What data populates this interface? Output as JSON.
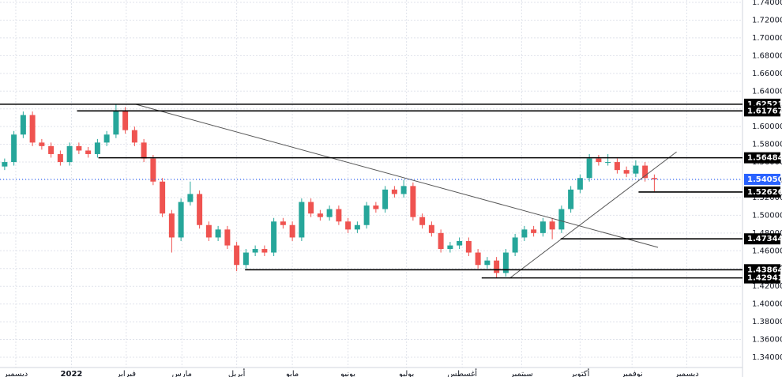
{
  "chart_data": {
    "type": "candlestick",
    "ylim": [
      1.3284,
      1.7427
    ],
    "yticks": [
      {
        "value": 1.34,
        "label": "1.34000"
      },
      {
        "value": 1.36,
        "label": "1.36000"
      },
      {
        "value": 1.38,
        "label": "1.38000"
      },
      {
        "value": 1.4,
        "label": "1.40000"
      },
      {
        "value": 1.42,
        "label": "1.42000"
      },
      {
        "value": 1.44,
        "label": "1.44000"
      },
      {
        "value": 1.46,
        "label": "1.46000"
      },
      {
        "value": 1.48,
        "label": "1.48000"
      },
      {
        "value": 1.5,
        "label": "1.50000"
      },
      {
        "value": 1.52,
        "label": "1.52000"
      },
      {
        "value": 1.54,
        "label": "1.54000"
      },
      {
        "value": 1.56,
        "label": "1.56000"
      },
      {
        "value": 1.58,
        "label": "1.58000"
      },
      {
        "value": 1.6,
        "label": "1.60000"
      },
      {
        "value": 1.62,
        "label": "1.62000"
      },
      {
        "value": 1.64,
        "label": "1.64000"
      },
      {
        "value": 1.66,
        "label": "1.66000"
      },
      {
        "value": 1.68,
        "label": "1.68000"
      },
      {
        "value": 1.7,
        "label": "1.70000"
      },
      {
        "value": 1.72,
        "label": "1.72000"
      },
      {
        "value": 1.74,
        "label": "1.74000"
      }
    ],
    "xlim": [
      -0.5,
      79.5
    ],
    "xticks": [
      {
        "value": 1.2,
        "label": "ديسمبر"
      },
      {
        "value": 7.2,
        "label": "2022"
      },
      {
        "value": 13.1,
        "label": "فبراير"
      },
      {
        "value": 19.1,
        "label": "مارس"
      },
      {
        "value": 25,
        "label": "أبريل"
      },
      {
        "value": 31,
        "label": "مايو"
      },
      {
        "value": 37,
        "label": "يونيو"
      },
      {
        "value": 43.3,
        "label": "يوليو"
      },
      {
        "value": 49.3,
        "label": "أغسطس"
      },
      {
        "value": 55.7,
        "label": "سبتمبر"
      },
      {
        "value": 62,
        "label": "أكتوبر"
      },
      {
        "value": 67.6,
        "label": "نوفمبر"
      },
      {
        "value": 73.5,
        "label": "ديسمبر"
      }
    ],
    "grid": true,
    "up_color": "#26a69a",
    "down_color": "#ef5350",
    "candles": {
      "open": [
        1.555,
        1.56,
        1.591,
        1.613,
        1.582,
        1.578,
        1.569,
        1.56,
        1.578,
        1.573,
        1.569,
        1.582,
        1.591,
        1.618,
        1.596,
        1.582,
        1.564,
        1.538,
        1.502,
        1.475,
        1.515,
        1.524,
        1.489,
        1.475,
        1.484,
        1.466,
        1.444,
        1.458,
        1.462,
        1.458,
        1.493,
        1.489,
        1.475,
        1.515,
        1.502,
        1.498,
        1.507,
        1.493,
        1.484,
        1.489,
        1.511,
        1.507,
        1.529,
        1.524,
        1.533,
        1.498,
        1.489,
        1.48,
        1.462,
        1.466,
        1.471,
        1.458,
        1.444,
        1.449,
        1.435,
        1.458,
        1.475,
        1.484,
        1.48,
        1.493,
        1.484,
        1.507,
        1.529,
        1.542,
        1.564,
        1.56,
        1.56,
        1.551,
        1.547,
        1.556,
        1.542
      ],
      "high": [
        1.564,
        1.595,
        1.617,
        1.617,
        1.586,
        1.582,
        1.573,
        1.582,
        1.582,
        1.577,
        1.586,
        1.595,
        1.6252,
        1.622,
        1.6,
        1.586,
        1.568,
        1.542,
        1.506,
        1.519,
        1.538,
        1.528,
        1.493,
        1.488,
        1.488,
        1.47,
        1.462,
        1.466,
        1.466,
        1.497,
        1.497,
        1.493,
        1.519,
        1.519,
        1.506,
        1.511,
        1.511,
        1.497,
        1.493,
        1.515,
        1.515,
        1.533,
        1.533,
        1.54,
        1.537,
        1.502,
        1.493,
        1.484,
        1.47,
        1.475,
        1.475,
        1.462,
        1.453,
        1.453,
        1.462,
        1.479,
        1.488,
        1.488,
        1.497,
        1.497,
        1.511,
        1.533,
        1.546,
        1.569,
        1.568,
        1.569,
        1.564,
        1.555,
        1.562,
        1.56,
        1.546
      ],
      "low": [
        1.551,
        1.556,
        1.587,
        1.578,
        1.574,
        1.565,
        1.556,
        1.556,
        1.569,
        1.565,
        1.565,
        1.578,
        1.587,
        1.592,
        1.578,
        1.56,
        1.534,
        1.498,
        1.458,
        1.471,
        1.511,
        1.485,
        1.471,
        1.471,
        1.462,
        1.437,
        1.44,
        1.454,
        1.454,
        1.454,
        1.485,
        1.471,
        1.471,
        1.498,
        1.494,
        1.494,
        1.489,
        1.48,
        1.48,
        1.485,
        1.503,
        1.503,
        1.52,
        1.52,
        1.494,
        1.485,
        1.476,
        1.458,
        1.458,
        1.462,
        1.454,
        1.44,
        1.44,
        1.4294,
        1.431,
        1.454,
        1.471,
        1.476,
        1.476,
        1.473,
        1.48,
        1.503,
        1.525,
        1.538,
        1.556,
        1.556,
        1.547,
        1.543,
        1.543,
        1.538,
        1.527
      ],
      "close": [
        1.56,
        1.591,
        1.613,
        1.582,
        1.578,
        1.569,
        1.56,
        1.578,
        1.573,
        1.569,
        1.582,
        1.591,
        1.618,
        1.596,
        1.582,
        1.564,
        1.538,
        1.502,
        1.475,
        1.515,
        1.524,
        1.489,
        1.475,
        1.484,
        1.466,
        1.444,
        1.458,
        1.462,
        1.458,
        1.493,
        1.489,
        1.475,
        1.515,
        1.502,
        1.498,
        1.507,
        1.493,
        1.484,
        1.489,
        1.511,
        1.507,
        1.529,
        1.524,
        1.533,
        1.498,
        1.489,
        1.48,
        1.462,
        1.466,
        1.471,
        1.458,
        1.444,
        1.449,
        1.435,
        1.458,
        1.475,
        1.484,
        1.48,
        1.493,
        1.484,
        1.507,
        1.529,
        1.542,
        1.564,
        1.56,
        1.56,
        1.551,
        1.547,
        1.556,
        1.542,
        1.5405
      ]
    },
    "levels": [
      {
        "price": 1.62521,
        "from": -0.5
      },
      {
        "price": 1.61767,
        "from": 7.8
      },
      {
        "price": 1.56484,
        "from": 10.1
      },
      {
        "price": 1.52626,
        "from": 68.3
      },
      {
        "price": 1.47344,
        "from": 59.9
      },
      {
        "price": 1.43864,
        "from": 25.9
      },
      {
        "price": 1.42941,
        "from": 51.4
      }
    ],
    "current_price": {
      "value": 1.5405,
      "label": "1.54050"
    },
    "current_color": "#2962ff",
    "trendlines": [
      {
        "from": [
          14.1,
          1.6252
        ],
        "to": [
          70.4,
          1.4638
        ]
      },
      {
        "from": [
          54.4,
          1.429
        ],
        "to": [
          72.4,
          1.5715
        ]
      }
    ]
  }
}
